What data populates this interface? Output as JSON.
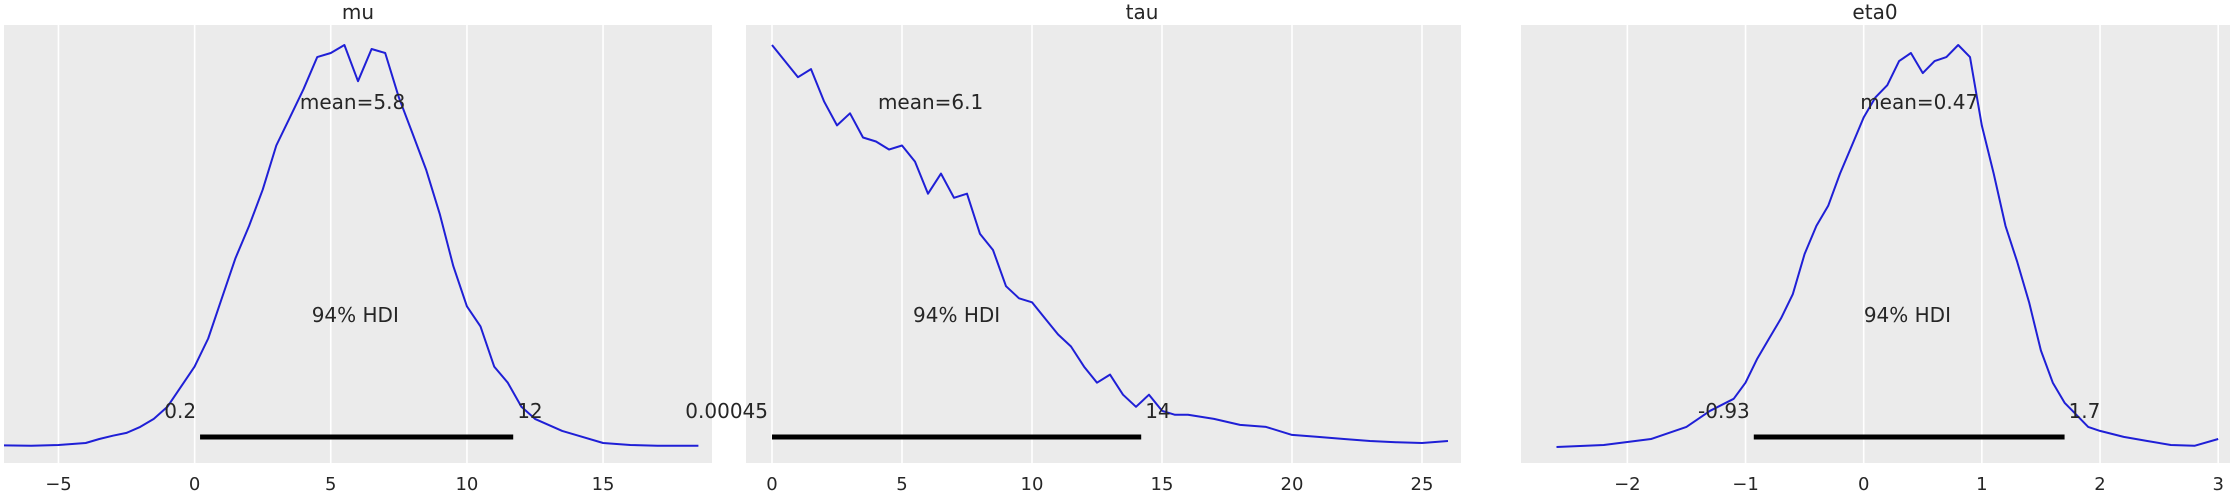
{
  "chart_data": [
    {
      "type": "density",
      "title": "mu",
      "xlim": [
        -7.0,
        19.0
      ],
      "xticks": [
        -5,
        0,
        5,
        10,
        15
      ],
      "xtick_labels": [
        "−5",
        "0",
        "5",
        "10",
        "15"
      ],
      "grid": true,
      "mean_label": "mean=5.8",
      "hdi_label": "94% HDI",
      "hdi_low_label": "0.2",
      "hdi_high_label": "12",
      "hdi": [
        0.2,
        11.7
      ],
      "line_color": "#1f1fd6",
      "curve": {
        "x": [
          -7.0,
          -6.0,
          -5.0,
          -4.0,
          -3.5,
          -3.0,
          -2.5,
          -2.0,
          -1.5,
          -1.0,
          -0.5,
          0.0,
          0.5,
          1.0,
          1.5,
          2.0,
          2.5,
          3.0,
          3.5,
          4.0,
          4.5,
          5.0,
          5.5,
          6.0,
          6.5,
          7.0,
          7.5,
          8.0,
          8.5,
          9.0,
          9.5,
          10.0,
          10.5,
          11.0,
          11.5,
          12.0,
          12.5,
          13.0,
          13.5,
          14.0,
          15.0,
          16.0,
          17.0,
          18.5
        ],
        "y": [
          0.004,
          0.003,
          0.005,
          0.01,
          0.02,
          0.028,
          0.035,
          0.05,
          0.07,
          0.1,
          0.15,
          0.2,
          0.27,
          0.37,
          0.47,
          0.55,
          0.64,
          0.75,
          0.82,
          0.89,
          0.97,
          0.98,
          1.0,
          0.91,
          0.99,
          0.98,
          0.87,
          0.78,
          0.69,
          0.58,
          0.45,
          0.35,
          0.3,
          0.2,
          0.16,
          0.1,
          0.07,
          0.055,
          0.04,
          0.03,
          0.01,
          0.005,
          0.003,
          0.003
        ]
      }
    },
    {
      "type": "density",
      "title": "tau",
      "xlim": [
        -1.0,
        26.5
      ],
      "xticks": [
        0,
        5,
        10,
        15,
        20,
        25
      ],
      "xtick_labels": [
        "0",
        "5",
        "10",
        "15",
        "20",
        "25"
      ],
      "grid": true,
      "mean_label": "mean=6.1",
      "hdi_label": "94% HDI",
      "hdi_low_label": "0.00045",
      "hdi_high_label": "14",
      "hdi": [
        0.00045,
        14.2
      ],
      "line_color": "#1f1fd6",
      "curve": {
        "x": [
          0.0,
          0.5,
          1.0,
          1.5,
          2.0,
          2.5,
          3.0,
          3.5,
          4.0,
          4.5,
          5.0,
          5.5,
          6.0,
          6.5,
          7.0,
          7.5,
          8.0,
          8.5,
          9.0,
          9.5,
          10.0,
          10.5,
          11.0,
          11.5,
          12.0,
          12.5,
          13.0,
          13.5,
          14.0,
          14.5,
          15.0,
          15.5,
          16.0,
          17.0,
          18.0,
          19.0,
          20.0,
          21.0,
          22.0,
          23.0,
          24.0,
          25.0,
          26.0
        ],
        "y": [
          1.0,
          0.96,
          0.92,
          0.94,
          0.86,
          0.8,
          0.83,
          0.77,
          0.76,
          0.74,
          0.75,
          0.71,
          0.63,
          0.68,
          0.62,
          0.63,
          0.53,
          0.49,
          0.4,
          0.37,
          0.36,
          0.32,
          0.28,
          0.25,
          0.2,
          0.16,
          0.18,
          0.13,
          0.1,
          0.13,
          0.09,
          0.08,
          0.08,
          0.07,
          0.055,
          0.05,
          0.03,
          0.025,
          0.02,
          0.015,
          0.012,
          0.01,
          0.015
        ]
      }
    },
    {
      "type": "density",
      "title": "eta0",
      "xlim": [
        -2.9,
        3.1
      ],
      "xticks": [
        -2,
        -1,
        0,
        1,
        2,
        3
      ],
      "xtick_labels": [
        "−2",
        "−1",
        "0",
        "1",
        "2",
        "3"
      ],
      "grid": true,
      "mean_label": "mean=0.47",
      "hdi_label": "94% HDI",
      "hdi_low_label": "-0.93",
      "hdi_high_label": "1.7",
      "hdi": [
        -0.93,
        1.7
      ],
      "line_color": "#1f1fd6",
      "curve": {
        "x": [
          -2.6,
          -2.2,
          -1.8,
          -1.5,
          -1.3,
          -1.1,
          -1.0,
          -0.9,
          -0.8,
          -0.7,
          -0.6,
          -0.5,
          -0.4,
          -0.3,
          -0.2,
          -0.1,
          0.0,
          0.1,
          0.2,
          0.3,
          0.4,
          0.5,
          0.6,
          0.7,
          0.8,
          0.9,
          1.0,
          1.1,
          1.2,
          1.3,
          1.4,
          1.5,
          1.6,
          1.7,
          1.8,
          1.9,
          2.0,
          2.2,
          2.4,
          2.6,
          2.8,
          3.0
        ],
        "y": [
          0.0,
          0.005,
          0.02,
          0.05,
          0.09,
          0.12,
          0.16,
          0.22,
          0.27,
          0.32,
          0.38,
          0.48,
          0.55,
          0.6,
          0.68,
          0.75,
          0.82,
          0.87,
          0.9,
          0.96,
          0.98,
          0.93,
          0.96,
          0.97,
          1.0,
          0.97,
          0.8,
          0.68,
          0.55,
          0.46,
          0.36,
          0.24,
          0.16,
          0.11,
          0.08,
          0.05,
          0.04,
          0.025,
          0.015,
          0.005,
          0.003,
          0.02
        ]
      }
    }
  ]
}
